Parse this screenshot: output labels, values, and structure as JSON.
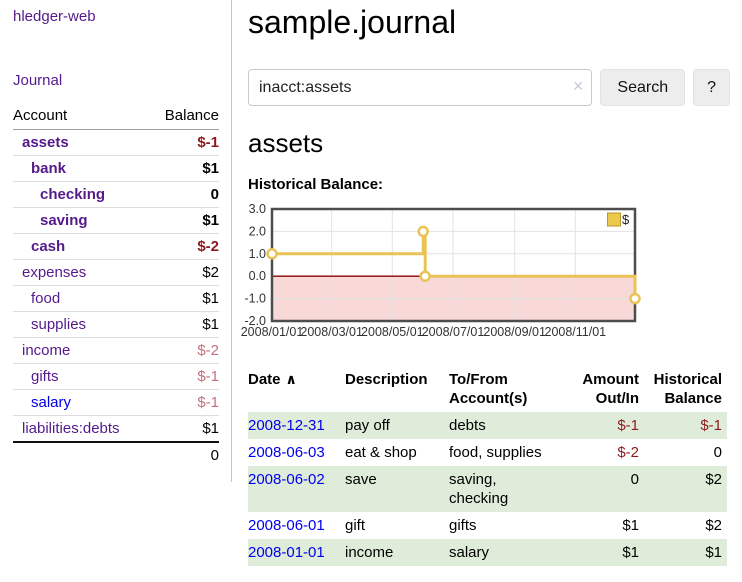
{
  "app": {
    "title": "hledger-web"
  },
  "sidebar": {
    "journal_label": "Journal",
    "table": {
      "account_header": "Account",
      "balance_header": "Balance",
      "rows": [
        {
          "account": "assets",
          "balance": "$-1",
          "depth": 1,
          "bold": true,
          "balance_style": "neg-strong"
        },
        {
          "account": "bank",
          "balance": "$1",
          "depth": 2,
          "bold": true,
          "balance_style": "pos"
        },
        {
          "account": "checking",
          "balance": "0",
          "depth": 3,
          "bold": true,
          "balance_style": "pos"
        },
        {
          "account": "saving",
          "balance": "$1",
          "depth": 3,
          "bold": true,
          "balance_style": "pos"
        },
        {
          "account": "cash",
          "balance": "$-2",
          "depth": 2,
          "bold": true,
          "balance_style": "neg-strong"
        },
        {
          "account": "expenses",
          "balance": "$2",
          "depth": 1,
          "bold": false,
          "balance_style": "pos"
        },
        {
          "account": "food",
          "balance": "$1",
          "depth": 2,
          "bold": false,
          "balance_style": "pos"
        },
        {
          "account": "supplies",
          "balance": "$1",
          "depth": 2,
          "bold": false,
          "balance_style": "pos"
        },
        {
          "account": "income",
          "balance": "$-2",
          "depth": 1,
          "bold": false,
          "balance_style": "neg-soft"
        },
        {
          "account": "gifts",
          "balance": "$-1",
          "depth": 2,
          "bold": false,
          "balance_style": "neg-soft"
        },
        {
          "account": "salary",
          "balance": "$-1",
          "depth": 2,
          "bold": false,
          "balance_style": "neg-soft",
          "link_style": "unvisited"
        },
        {
          "account": "liabilities:debts",
          "balance": "$1",
          "depth": 1,
          "bold": false,
          "balance_style": "pos"
        }
      ],
      "total": "0"
    }
  },
  "header": {
    "title": "sample.journal"
  },
  "search": {
    "value": "inacct:assets",
    "clear_icon": "×",
    "button_label": "Search",
    "help_label": "?"
  },
  "account_page": {
    "title": "assets",
    "chart_label": "Historical Balance:"
  },
  "chart_data": {
    "type": "line",
    "style": "step",
    "title": "Historical Balance",
    "series": [
      {
        "name": "$",
        "points": [
          {
            "date": "2008-01-01",
            "value": 1
          },
          {
            "date": "2008-06-01",
            "value": 2
          },
          {
            "date": "2008-06-03",
            "value": 0
          },
          {
            "date": "2008-12-31",
            "value": -1
          }
        ]
      }
    ],
    "xlim": [
      "2008-01-01",
      "2008-12-31"
    ],
    "ylim": [
      -2,
      3
    ],
    "x_ticks": [
      {
        "date": "2008-01-01",
        "label": "2008/01/01"
      },
      {
        "date": "2008-03-01",
        "label": "2008/03/01"
      },
      {
        "date": "2008-05-01",
        "label": "2008/05/01"
      },
      {
        "date": "2008-07-01",
        "label": "2008/07/01"
      },
      {
        "date": "2008-09-01",
        "label": "2008/09/01"
      },
      {
        "date": "2008-11-01",
        "label": "2008/11/01"
      }
    ],
    "y_ticks": [
      {
        "value": 3,
        "label": "3.0"
      },
      {
        "value": 2,
        "label": "2.0"
      },
      {
        "value": 1,
        "label": "1.0"
      },
      {
        "value": 0,
        "label": "0.0"
      },
      {
        "value": -1,
        "label": "-1.0"
      },
      {
        "value": -2,
        "label": "-2.0"
      }
    ],
    "legend": {
      "label": "$",
      "position": "top-right"
    },
    "colors": {
      "line": "#e9c356",
      "marker_fill": "#ffffff",
      "negative_region": "#f9d8d8",
      "zero_line": "#8b0000",
      "grid": "#e3e3e3",
      "border": "#4d4d4d",
      "legend_fill": "#ecc94b",
      "legend_border": "#b9962e",
      "tick_text": "#333333"
    }
  },
  "register": {
    "sort_icon": "∧",
    "headers": [
      "Date",
      "Description",
      "To/From Account(s)",
      "Amount Out/In",
      "Historical Balance"
    ],
    "rows": [
      {
        "date": "2008-12-31",
        "description": "pay off",
        "accounts": "debts",
        "amount": "$-1",
        "amount_negative": true,
        "balance": "$-1",
        "balance_negative": true
      },
      {
        "date": "2008-06-03",
        "description": "eat & shop",
        "accounts": "food, supplies",
        "amount": "$-2",
        "amount_negative": true,
        "balance": "0",
        "balance_negative": false
      },
      {
        "date": "2008-06-02",
        "description": "save",
        "accounts": "saving, checking",
        "amount": "0",
        "amount_negative": false,
        "balance": "$2",
        "balance_negative": false
      },
      {
        "date": "2008-06-01",
        "description": "gift",
        "accounts": "gifts",
        "amount": "$1",
        "amount_negative": false,
        "balance": "$2",
        "balance_negative": false
      },
      {
        "date": "2008-01-01",
        "description": "income",
        "accounts": "salary",
        "amount": "$1",
        "amount_negative": false,
        "balance": "$1",
        "balance_negative": false
      }
    ]
  }
}
